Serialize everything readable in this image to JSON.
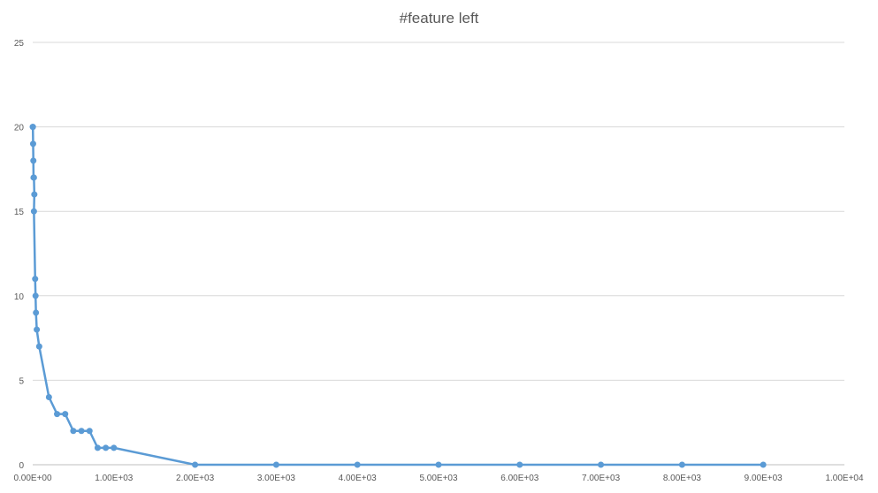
{
  "chart_data": {
    "type": "scatter",
    "title": "#feature left",
    "xlabel": "",
    "ylabel": "",
    "xlim": [
      0,
      10000
    ],
    "ylim": [
      0,
      25
    ],
    "xticks": [
      0,
      1000,
      2000,
      3000,
      4000,
      5000,
      6000,
      7000,
      8000,
      9000,
      10000
    ],
    "xtick_labels": [
      "0.00E+00",
      "1.00E+03",
      "2.00E+03",
      "3.00E+03",
      "4.00E+03",
      "5.00E+03",
      "6.00E+03",
      "7.00E+03",
      "8.00E+03",
      "9.00E+03",
      "1.00E+04"
    ],
    "yticks": [
      0,
      5,
      10,
      15,
      20,
      25
    ],
    "ytick_labels": [
      "0",
      "5",
      "10",
      "15",
      "20",
      "25"
    ],
    "grid": "horizontal",
    "legend": "none",
    "series": [
      {
        "color": "#5b9bd5",
        "line": "straight",
        "marker": "circle",
        "points": [
          [
            1,
            20
          ],
          [
            2,
            20
          ],
          [
            5,
            19
          ],
          [
            8,
            18
          ],
          [
            10,
            17
          ],
          [
            15,
            17
          ],
          [
            20,
            16
          ],
          [
            15,
            15
          ],
          [
            30,
            11
          ],
          [
            35,
            10
          ],
          [
            40,
            9
          ],
          [
            50,
            8
          ],
          [
            80,
            7
          ],
          [
            200,
            4
          ],
          [
            300,
            3
          ],
          [
            400,
            3
          ],
          [
            500,
            2
          ],
          [
            600,
            2
          ],
          [
            700,
            2
          ],
          [
            800,
            1
          ],
          [
            900,
            1
          ],
          [
            1000,
            1
          ],
          [
            2000,
            0
          ],
          [
            3000,
            0
          ],
          [
            4000,
            0
          ],
          [
            5000,
            0
          ],
          [
            6000,
            0
          ],
          [
            7000,
            0
          ],
          [
            8000,
            0
          ],
          [
            9000,
            0
          ]
        ]
      }
    ]
  }
}
